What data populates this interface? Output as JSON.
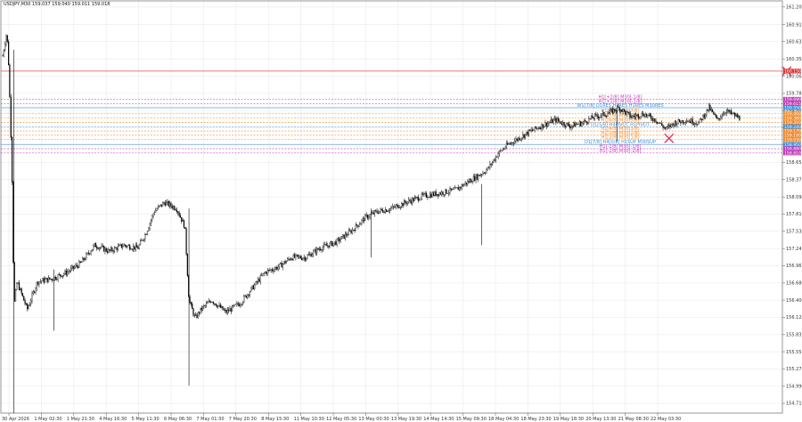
{
  "header": {
    "symbol_line": "USDJPY,M30  159.037 159.040 159.011 159.018"
  },
  "colors": {
    "candle": "#000000",
    "grid": "#e6e6e6",
    "red_marker": "#e8345a",
    "level_blue": "#3a8fd9",
    "level_orange": "#ef8a2e",
    "level_magenta": "#c03bb8",
    "level_red": "#e03030",
    "level_purple": "#9b59b6",
    "level_gray": "#8a8a8a"
  },
  "chart_data": {
    "type": "candlestick",
    "title": "USDJPY,M30",
    "xlabel": "",
    "ylabel": "",
    "ylim": [
      154.55,
      161.3
    ],
    "grid": true,
    "y_ticks": [
      "161.200",
      "160.910",
      "160.635",
      "160.350",
      "160.065",
      "159.785",
      "159.505",
      "159.220",
      "158.940",
      "158.655",
      "158.375",
      "158.090",
      "157.810",
      "157.530",
      "157.245",
      "156.965",
      "156.680",
      "156.400",
      "156.120",
      "155.835",
      "155.555",
      "155.275",
      "154.990",
      "154.710"
    ],
    "x_ticks": [
      "30 Apr 2026",
      "1 May 02:30",
      "1 May 21:30",
      "4 May 16:30",
      "5 May 11:30",
      "6 May 06:30",
      "7 May 01:30",
      "7 May 20:30",
      "8 May 15:30",
      "11 May 10:30",
      "12 May 05:30",
      "13 May 00:30",
      "13 May 19:30",
      "14 May 14:30",
      "15 May 09:30",
      "18 May 04:30",
      "18 May 23:30",
      "19 May 18:30",
      "20 May 13:30",
      "21 May 08:30",
      "22 May 03:30"
    ],
    "price_path": [
      [
        0,
        160.4
      ],
      [
        4,
        160.8
      ],
      [
        6,
        160.2
      ],
      [
        9,
        158.6
      ],
      [
        11,
        156.3
      ],
      [
        14,
        156.7
      ],
      [
        24,
        156.25
      ],
      [
        34,
        156.7
      ],
      [
        48,
        156.75
      ],
      [
        62,
        156.85
      ],
      [
        76,
        157.0
      ],
      [
        90,
        157.3
      ],
      [
        104,
        157.2
      ],
      [
        118,
        157.3
      ],
      [
        132,
        157.25
      ],
      [
        140,
        157.5
      ],
      [
        148,
        157.85
      ],
      [
        158,
        158.0
      ],
      [
        170,
        157.9
      ],
      [
        178,
        157.6
      ],
      [
        182,
        156.4
      ],
      [
        188,
        156.1
      ],
      [
        194,
        156.25
      ],
      [
        204,
        156.4
      ],
      [
        218,
        156.2
      ],
      [
        232,
        156.35
      ],
      [
        244,
        156.6
      ],
      [
        256,
        156.85
      ],
      [
        270,
        156.95
      ],
      [
        282,
        157.1
      ],
      [
        296,
        157.1
      ],
      [
        310,
        157.25
      ],
      [
        326,
        157.35
      ],
      [
        342,
        157.55
      ],
      [
        354,
        157.75
      ],
      [
        366,
        157.85
      ],
      [
        380,
        157.9
      ],
      [
        394,
        158.0
      ],
      [
        410,
        158.1
      ],
      [
        426,
        158.15
      ],
      [
        442,
        158.2
      ],
      [
        456,
        158.35
      ],
      [
        466,
        158.45
      ],
      [
        474,
        158.55
      ],
      [
        484,
        158.8
      ],
      [
        494,
        158.95
      ],
      [
        504,
        159.05
      ],
      [
        514,
        159.15
      ],
      [
        526,
        159.25
      ],
      [
        540,
        159.35
      ],
      [
        554,
        159.25
      ],
      [
        566,
        159.3
      ],
      [
        578,
        159.4
      ],
      [
        590,
        159.45
      ],
      [
        602,
        159.55
      ],
      [
        614,
        159.4
      ],
      [
        626,
        159.45
      ],
      [
        638,
        159.35
      ],
      [
        648,
        159.2
      ],
      [
        656,
        159.3
      ],
      [
        668,
        159.35
      ],
      [
        680,
        159.3
      ],
      [
        690,
        159.55
      ],
      [
        698,
        159.35
      ],
      [
        706,
        159.5
      ],
      [
        712,
        159.45
      ],
      [
        720,
        159.38
      ]
    ],
    "spikes": [
      [
        11,
        154.55,
        160.5
      ],
      [
        50,
        155.9,
        156.9
      ],
      [
        182,
        155.0,
        157.9
      ],
      [
        360,
        157.1,
        157.9
      ],
      [
        468,
        157.3,
        158.3
      ],
      [
        600,
        159.0,
        159.55
      ]
    ],
    "current_price_line": 160.15,
    "markers": [
      {
        "type": "x",
        "t": 766,
        "price": 160.15
      },
      {
        "type": "x",
        "t": 651,
        "price": 159.05
      }
    ],
    "levels": [
      {
        "price": 160.15,
        "label": "",
        "tag": "160.150",
        "color": "#e03030",
        "style": "solid"
      },
      {
        "price": 159.69,
        "label": "H1[+2/8] M30[-1/8]",
        "tag": "159.690",
        "color": "#c03bb8",
        "style": "dash"
      },
      {
        "price": 159.615,
        "label": "H1[+1/8] M30[-1/8]",
        "tag": "159.615",
        "color": "#c03bb8",
        "style": "dash"
      },
      {
        "price": 159.55,
        "label": "W1[7/8] D1RES H4RES H1RES M30RES",
        "tag": "159.550",
        "color": "#3a8fd9",
        "style": "solid"
      },
      {
        "price": 159.46,
        "label": "H1[7/8] M30[7/8]",
        "tag": "159.460",
        "color": "#ef8a2e",
        "style": "dash"
      },
      {
        "price": 159.38,
        "label": "H1[7/8] M30[6/8]",
        "tag": "159.380",
        "color": "#ef8a2e",
        "style": "dash"
      },
      {
        "price": 159.31,
        "label": "H1[6/8] M30[5/8]",
        "tag": "159.310",
        "color": "#ef8a2e",
        "style": "dash"
      },
      {
        "price": 159.24,
        "label": "D1[5/8] H4PIVOT H1PIVOT",
        "tag": "159.240",
        "color": "#3a8fd9",
        "style": "dash"
      },
      {
        "price": 159.17,
        "label": "H1[4/8] M30[3/8]",
        "tag": "159.170",
        "color": "#ef8a2e",
        "style": "dash"
      },
      {
        "price": 159.1,
        "label": "H1[3/8] M30[2/8]",
        "tag": "159.100",
        "color": "#ef8a2e",
        "style": "dash"
      },
      {
        "price": 159.03,
        "label": "H1[2/8] M30[1/8]",
        "tag": "159.030",
        "color": "#ef8a2e",
        "style": "dash"
      },
      {
        "price": 158.95,
        "label": "D1[7/8] H4[0/8] H1SUP M30SUP",
        "tag": "158.950",
        "color": "#3a8fd9",
        "style": "solid"
      },
      {
        "price": 158.88,
        "label": "H1[-1/8] M30[-1/8]",
        "tag": "158.880",
        "color": "#c03bb8",
        "style": "dash"
      },
      {
        "price": 158.81,
        "label": "H1[-2/8] M30[-2/8]",
        "tag": "158.810",
        "color": "#c03bb8",
        "style": "dash"
      }
    ],
    "series": []
  }
}
